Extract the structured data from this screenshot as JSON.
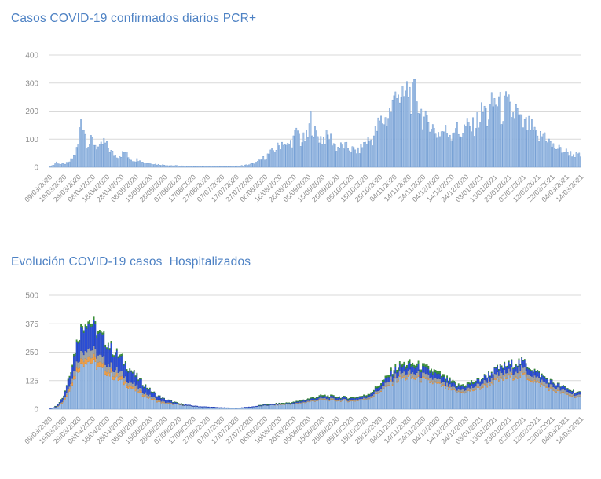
{
  "theme": {
    "background": "#ffffff",
    "title_color": "#4e82c4",
    "axis_text_color": "#8c8c8c",
    "gridline_color": "#d9d9d9"
  },
  "chart_data": [
    {
      "type": "bar",
      "title": "Casos COVID-19 confirmados diarios PCR+",
      "x_start": "09/03/2020",
      "x_end": "14/03/2021",
      "days_total": 371,
      "ylim": [
        0,
        400
      ],
      "yticks": [
        0,
        100,
        200,
        300,
        400
      ],
      "grid": true,
      "legend": "none",
      "x_tick_labels": [
        "09/03/2020",
        "19/03/2020",
        "29/03/2020",
        "08/04/2020",
        "18/04/2020",
        "28/04/2020",
        "08/05/2020",
        "18/05/2020",
        "28/05/2020",
        "07/06/2020",
        "17/06/2020",
        "27/06/2020",
        "07/07/2020",
        "17/07/2020",
        "27/07/2020",
        "06/08/2020",
        "16/08/2020",
        "26/08/2020",
        "05/09/2020",
        "15/09/2020",
        "25/09/2020",
        "05/10/2020",
        "15/10/2020",
        "25/10/2020",
        "04/11/2020",
        "14/11/2020",
        "24/11/2020",
        "04/12/2020",
        "14/12/2020",
        "24/12/2020",
        "03/01/2021",
        "13/01/2021",
        "23/01/2021",
        "02/02/2021",
        "12/02/2021",
        "22/02/2021",
        "04/03/2021",
        "14/03/2021"
      ],
      "control_days": [
        0,
        3,
        5,
        8,
        10,
        13,
        15,
        18,
        20,
        22,
        24,
        26,
        28,
        30,
        33,
        35,
        38,
        40,
        43,
        45,
        48,
        50,
        53,
        55,
        58,
        60,
        63,
        65,
        68,
        70,
        75,
        80,
        85,
        90,
        95,
        100,
        105,
        110,
        115,
        120,
        125,
        130,
        135,
        140,
        145,
        150,
        155,
        160,
        163,
        165,
        170,
        173,
        175,
        180,
        182,
        185,
        190,
        195,
        200,
        205,
        210,
        215,
        220,
        225,
        230,
        235,
        238,
        240,
        242,
        245,
        248,
        250,
        253,
        255,
        258,
        260,
        263,
        265,
        268,
        270,
        275,
        280,
        283,
        285,
        288,
        290,
        295,
        300,
        303,
        305,
        308,
        310,
        313,
        315,
        318,
        320,
        323,
        325,
        328,
        330,
        335,
        340,
        345,
        350,
        355,
        360,
        365,
        370
      ],
      "series": [
        {
          "name": "casos-pcr-diarios",
          "color": "#abc6e8",
          "stroke": "#6f9bd2",
          "values": [
            3,
            8,
            18,
            10,
            12,
            15,
            25,
            45,
            80,
            180,
            145,
            90,
            85,
            95,
            75,
            65,
            90,
            75,
            55,
            45,
            40,
            45,
            55,
            35,
            25,
            25,
            30,
            18,
            15,
            15,
            10,
            8,
            6,
            5,
            4,
            3,
            3,
            4,
            3,
            2,
            3,
            4,
            6,
            10,
            18,
            35,
            55,
            75,
            95,
            70,
            100,
            130,
            90,
            110,
            170,
            120,
            100,
            110,
            70,
            75,
            65,
            55,
            90,
            100,
            160,
            170,
            210,
            230,
            310,
            220,
            260,
            275,
            240,
            275,
            210,
            180,
            150,
            170,
            130,
            120,
            130,
            120,
            150,
            115,
            130,
            145,
            140,
            180,
            210,
            170,
            215,
            230,
            235,
            195,
            220,
            210,
            185,
            200,
            160,
            150,
            145,
            100,
            120,
            75,
            65,
            55,
            45,
            40
          ]
        }
      ]
    },
    {
      "type": "stacked-bar",
      "title": "Evolución COVID-19 casos  Hospitalizados",
      "x_start": "09/03/2020",
      "x_end": "14/03/2021",
      "days_total": 371,
      "ylim": [
        0,
        500
      ],
      "yticks": [
        0,
        125,
        250,
        375,
        500
      ],
      "grid": true,
      "legend": "none",
      "x_tick_labels": [
        "09/03/2020",
        "19/03/2020",
        "29/03/2020",
        "08/04/2020",
        "18/04/2020",
        "28/04/2020",
        "08/05/2020",
        "18/05/2020",
        "28/05/2020",
        "07/06/2020",
        "17/06/2020",
        "27/06/2020",
        "07/07/2020",
        "17/07/2020",
        "27/07/2020",
        "06/08/2020",
        "16/08/2020",
        "26/08/2020",
        "05/09/2020",
        "15/09/2020",
        "25/09/2020",
        "05/10/2020",
        "15/10/2020",
        "25/10/2020",
        "04/11/2020",
        "14/11/2020",
        "24/11/2020",
        "04/12/2020",
        "14/12/2020",
        "24/12/2020",
        "03/01/2021",
        "13/01/2021",
        "23/01/2021",
        "02/02/2021",
        "12/02/2021",
        "22/02/2021",
        "04/03/2021",
        "14/03/2021"
      ],
      "control_days": [
        0,
        5,
        10,
        15,
        20,
        23,
        26,
        30,
        35,
        40,
        45,
        50,
        55,
        60,
        65,
        70,
        75,
        80,
        90,
        100,
        110,
        120,
        130,
        140,
        150,
        160,
        170,
        180,
        190,
        200,
        210,
        220,
        225,
        230,
        235,
        240,
        245,
        250,
        255,
        260,
        265,
        270,
        275,
        280,
        285,
        290,
        295,
        300,
        305,
        310,
        315,
        320,
        325,
        330,
        335,
        340,
        345,
        350,
        355,
        360,
        365,
        370
      ],
      "series": [
        {
          "name": "stack-nivel-1-celeste",
          "color": "#abc6e8",
          "stroke": "#6f9bd2",
          "values": [
            1,
            8,
            32,
            97,
            173,
            200,
            216,
            205,
            178,
            162,
            138,
            124,
            100,
            81,
            62,
            46,
            34,
            25,
            19,
            12,
            8,
            6,
            4,
            8,
            15,
            19,
            22,
            31,
            41,
            37,
            34,
            41,
            54,
            75,
            95,
            122,
            133,
            136,
            133,
            126,
            119,
            109,
            95,
            82,
            71,
            75,
            82,
            91,
            105,
            119,
            130,
            137,
            144,
            147,
            130,
            112,
            98,
            84,
            74,
            63,
            56,
            49
          ]
        },
        {
          "name": "stack-nivel-2-naranja",
          "color": "#f3a24c",
          "stroke": "#d88a32",
          "values": [
            0,
            1,
            4,
            11,
            19,
            22,
            24,
            23,
            20,
            18,
            15,
            14,
            11,
            9,
            7,
            5,
            4,
            3,
            1,
            0,
            0,
            0,
            0,
            0,
            0,
            1,
            1,
            1,
            2,
            2,
            2,
            2,
            2,
            3,
            4,
            5,
            6,
            6,
            6,
            6,
            5,
            5,
            4,
            4,
            3,
            3,
            4,
            4,
            5,
            5,
            6,
            6,
            6,
            6,
            6,
            5,
            4,
            4,
            3,
            3,
            2,
            2
          ]
        },
        {
          "name": "stack-nivel-3-gris",
          "color": "#a3a6aa",
          "stroke": "#8d9093",
          "values": [
            0,
            1,
            5,
            16,
            29,
            33,
            36,
            34,
            30,
            27,
            23,
            21,
            17,
            13,
            10,
            8,
            6,
            4,
            1,
            1,
            0,
            0,
            0,
            0,
            1,
            1,
            1,
            4,
            5,
            5,
            4,
            5,
            7,
            10,
            13,
            16,
            18,
            18,
            18,
            17,
            16,
            14,
            13,
            11,
            9,
            10,
            11,
            14,
            17,
            19,
            20,
            21,
            23,
            23,
            20,
            18,
            15,
            13,
            12,
            10,
            9,
            8
          ]
        },
        {
          "name": "stack-nivel-4-azul",
          "color": "#2b50dd",
          "stroke": "#1e3cb4",
          "values": [
            1,
            4,
            17,
            50,
            90,
            104,
            112,
            107,
            92,
            84,
            71,
            64,
            52,
            42,
            32,
            24,
            17,
            12,
            3,
            2,
            2,
            1,
            1,
            2,
            3,
            3,
            4,
            6,
            8,
            8,
            7,
            8,
            11,
            15,
            20,
            25,
            27,
            28,
            27,
            26,
            25,
            22,
            20,
            17,
            15,
            15,
            17,
            18,
            21,
            24,
            26,
            27,
            29,
            29,
            26,
            22,
            20,
            17,
            15,
            13,
            11,
            10
          ]
        },
        {
          "name": "stack-nivel-5-verde",
          "color": "#3b9a39",
          "stroke": "#2d7a2c",
          "values": [
            0,
            1,
            2,
            6,
            9,
            11,
            12,
            11,
            10,
            9,
            8,
            7,
            5,
            5,
            4,
            2,
            1,
            1,
            1,
            0,
            0,
            0,
            0,
            0,
            1,
            1,
            2,
            3,
            4,
            3,
            3,
            4,
            5,
            7,
            8,
            11,
            12,
            12,
            12,
            11,
            11,
            10,
            9,
            7,
            6,
            7,
            7,
            3,
            3,
            3,
            4,
            4,
            4,
            4,
            4,
            3,
            3,
            2,
            2,
            2,
            2,
            1
          ]
        }
      ]
    }
  ]
}
